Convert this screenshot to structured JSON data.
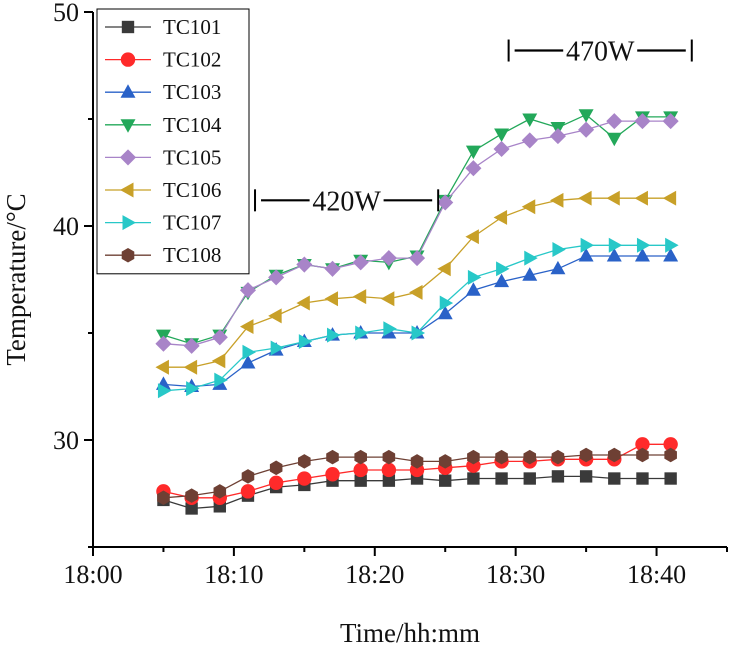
{
  "chart_data": {
    "type": "line",
    "title": "",
    "xlabel": "Time/hh:mm",
    "ylabel": "Temperature/°C",
    "xlim": [
      0,
      45
    ],
    "ylim": [
      25,
      50
    ],
    "x_ticks": [
      {
        "value": 0,
        "label": "18:00"
      },
      {
        "value": 10,
        "label": "18:10"
      },
      {
        "value": 20,
        "label": "18:20"
      },
      {
        "value": 30,
        "label": "18:30"
      },
      {
        "value": 40,
        "label": "18:40"
      }
    ],
    "y_ticks": [
      {
        "value": 30,
        "label": "30"
      },
      {
        "value": 40,
        "label": "40"
      },
      {
        "value": 50,
        "label": "50"
      }
    ],
    "x": [
      5,
      7,
      9,
      11,
      13,
      15,
      17,
      19,
      21,
      23,
      25,
      27,
      29,
      31,
      33,
      35,
      37,
      39,
      41
    ],
    "series": [
      {
        "name": "TC101",
        "marker": "square",
        "color": "#3a3a3a",
        "values": [
          27.2,
          26.8,
          26.9,
          27.4,
          27.8,
          27.9,
          28.1,
          28.1,
          28.1,
          28.2,
          28.1,
          28.2,
          28.2,
          28.2,
          28.3,
          28.3,
          28.2,
          28.2,
          28.2
        ]
      },
      {
        "name": "TC102",
        "marker": "circle",
        "color": "#ff2a2a",
        "values": [
          27.6,
          27.3,
          27.3,
          27.6,
          28.0,
          28.2,
          28.4,
          28.6,
          28.6,
          28.6,
          28.7,
          28.8,
          29.0,
          29.0,
          29.1,
          29.1,
          29.1,
          29.8,
          29.8
        ]
      },
      {
        "name": "TC103",
        "marker": "triangle-up",
        "color": "#2a62c8",
        "values": [
          32.6,
          32.5,
          32.6,
          33.6,
          34.2,
          34.6,
          34.9,
          35.0,
          35.0,
          35.0,
          35.9,
          37.0,
          37.4,
          37.7,
          38.0,
          38.6,
          38.6,
          38.6,
          38.6
        ]
      },
      {
        "name": "TC104",
        "marker": "triangle-down",
        "color": "#23a85a",
        "values": [
          34.9,
          34.5,
          34.9,
          36.9,
          37.7,
          38.2,
          38.0,
          38.4,
          38.3,
          38.6,
          41.2,
          43.5,
          44.3,
          45.0,
          44.6,
          45.2,
          44.1,
          45.1,
          45.1
        ]
      },
      {
        "name": "TC105",
        "marker": "diamond",
        "color": "#a884c8",
        "values": [
          34.5,
          34.4,
          34.8,
          37.0,
          37.6,
          38.2,
          38.0,
          38.3,
          38.5,
          38.5,
          41.1,
          42.7,
          43.6,
          44.0,
          44.2,
          44.5,
          44.9,
          44.9,
          44.9
        ]
      },
      {
        "name": "TC106",
        "marker": "triangle-left",
        "color": "#c8a028",
        "values": [
          33.4,
          33.4,
          33.7,
          35.3,
          35.8,
          36.4,
          36.6,
          36.7,
          36.6,
          36.9,
          38.0,
          39.5,
          40.4,
          40.9,
          41.2,
          41.3,
          41.3,
          41.3,
          41.3
        ]
      },
      {
        "name": "TC107",
        "marker": "triangle-right",
        "color": "#28c8c8",
        "values": [
          32.3,
          32.4,
          32.8,
          34.1,
          34.3,
          34.6,
          34.9,
          35.0,
          35.2,
          35.0,
          36.4,
          37.6,
          38.0,
          38.5,
          38.9,
          39.1,
          39.1,
          39.1,
          39.1
        ]
      },
      {
        "name": "TC108",
        "marker": "hexagon",
        "color": "#6e4034",
        "values": [
          27.3,
          27.4,
          27.6,
          28.3,
          28.7,
          29.0,
          29.2,
          29.2,
          29.2,
          29.0,
          29.0,
          29.2,
          29.2,
          29.2,
          29.2,
          29.3,
          29.3,
          29.3,
          29.3
        ]
      }
    ],
    "annotations": [
      {
        "text": "420W",
        "x_from": 11.5,
        "x_to": 24.5,
        "y": 41.2
      },
      {
        "text": "470W",
        "x_from": 29.5,
        "x_to": 42.5,
        "y": 48.2
      }
    ],
    "legend_position": "top-left",
    "grid": false
  }
}
